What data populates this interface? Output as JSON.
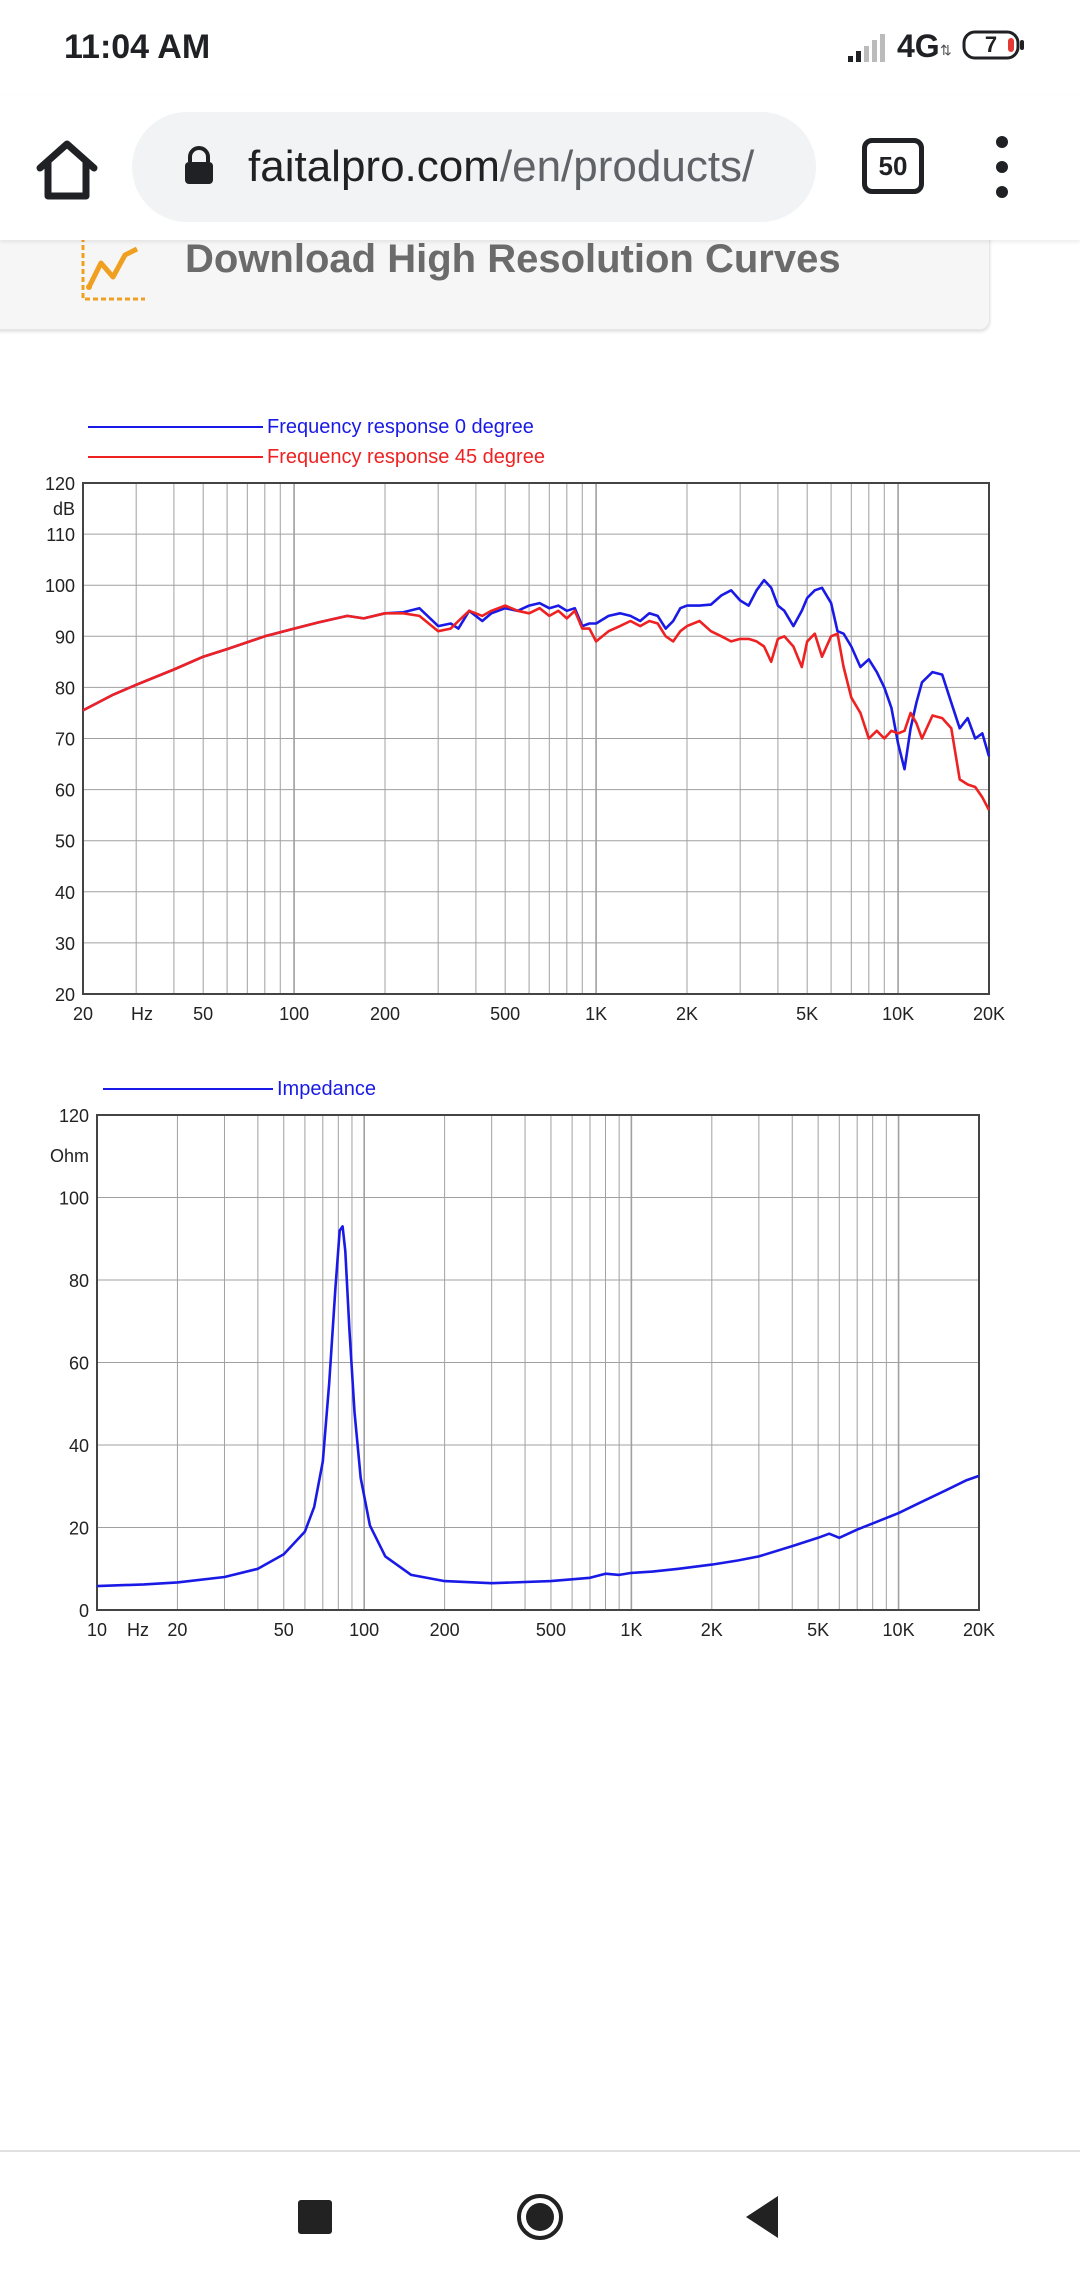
{
  "status_bar": {
    "time": "11:04 AM",
    "network": "4G",
    "battery": "7"
  },
  "browser": {
    "url_domain": "faitalpro.com",
    "url_path": "/en/products/",
    "tab_count": "50"
  },
  "download": {
    "label": "Download High Resolution Curves"
  },
  "colors": {
    "series_0deg": "#1a1ae6",
    "series_45deg": "#ee2222",
    "impedance": "#1a1ae6",
    "grid": "#a0a0a0"
  },
  "chart_data": [
    {
      "type": "line",
      "title": "",
      "x_scale": "log",
      "xlim": [
        20,
        20000
      ],
      "ylim": [
        20,
        120
      ],
      "ylabel": "dB",
      "xlabel": "Hz",
      "x_tick_labels": [
        "20",
        "Hz",
        "50",
        "100",
        "200",
        "500",
        "1K",
        "2K",
        "5K",
        "10K",
        "20K"
      ],
      "y_tick_labels": [
        "120",
        "dB",
        "110",
        "100",
        "90",
        "80",
        "70",
        "60",
        "50",
        "40",
        "30",
        "20"
      ],
      "legend": "top-left",
      "series": [
        {
          "name": "Frequency response 0 degree",
          "x": [
            20,
            25,
            30,
            40,
            50,
            60,
            80,
            100,
            120,
            150,
            170,
            200,
            230,
            260,
            300,
            330,
            350,
            380,
            420,
            450,
            500,
            550,
            600,
            650,
            700,
            750,
            800,
            850,
            900,
            950,
            1000,
            1100,
            1200,
            1300,
            1400,
            1500,
            1600,
            1700,
            1800,
            1900,
            2000,
            2200,
            2400,
            2600,
            2800,
            3000,
            3200,
            3400,
            3600,
            3800,
            4000,
            4200,
            4500,
            4800,
            5000,
            5300,
            5600,
            6000,
            6300,
            6600,
            7000,
            7500,
            8000,
            8500,
            9000,
            9500,
            10000,
            10500,
            11000,
            11500,
            12000,
            13000,
            14000,
            15000,
            16000,
            17000,
            18000,
            19000,
            20000
          ],
          "y": [
            75.5,
            78.5,
            80.5,
            83.5,
            86,
            87.5,
            90,
            91.5,
            92.7,
            94,
            93.5,
            94.5,
            94.7,
            95.5,
            92,
            92.5,
            91.5,
            95,
            93,
            94.5,
            95.5,
            95,
            96,
            96.5,
            95.5,
            96,
            95,
            95.5,
            92,
            92.5,
            92.5,
            94,
            94.5,
            94,
            93,
            94.5,
            94,
            91.5,
            93,
            95.5,
            96,
            96,
            96.2,
            98,
            99,
            97,
            96,
            99,
            101,
            99.5,
            96,
            95,
            92,
            95,
            97.5,
            99,
            99.5,
            96.5,
            91,
            90.5,
            88,
            84,
            85.5,
            83,
            80,
            76,
            69,
            64,
            72,
            77,
            81,
            83,
            82.5,
            77,
            72,
            74,
            70,
            71,
            66.5
          ]
        },
        {
          "name": "Frequency response 45 degree",
          "x": [
            20,
            25,
            30,
            40,
            50,
            60,
            80,
            100,
            120,
            150,
            170,
            200,
            230,
            260,
            300,
            330,
            350,
            380,
            420,
            450,
            500,
            550,
            600,
            650,
            700,
            750,
            800,
            850,
            900,
            950,
            1000,
            1100,
            1200,
            1300,
            1400,
            1500,
            1600,
            1700,
            1800,
            1900,
            2000,
            2200,
            2400,
            2600,
            2800,
            3000,
            3200,
            3400,
            3600,
            3800,
            4000,
            4200,
            4500,
            4800,
            5000,
            5300,
            5600,
            6000,
            6300,
            6600,
            7000,
            7500,
            8000,
            8500,
            9000,
            9500,
            10000,
            10500,
            11000,
            11500,
            12000,
            13000,
            14000,
            15000,
            16000,
            17000,
            18000,
            19000,
            20000
          ],
          "y": [
            75.5,
            78.5,
            80.5,
            83.5,
            86,
            87.5,
            90,
            91.5,
            92.7,
            94,
            93.5,
            94.5,
            94.5,
            94,
            91,
            91.5,
            93,
            95,
            94,
            95,
            96,
            95,
            94.5,
            95.5,
            94,
            95,
            93.5,
            95,
            91.5,
            91.5,
            89,
            91,
            92,
            93,
            92,
            93,
            92.5,
            90,
            89,
            91,
            92,
            93,
            91,
            90,
            89,
            89.5,
            89.5,
            89,
            88,
            85,
            89.5,
            90,
            88,
            84,
            89,
            90.5,
            86,
            90,
            90.5,
            84,
            78,
            75,
            70,
            71.5,
            70,
            71.5,
            71,
            71.5,
            75,
            73,
            70,
            74.5,
            74,
            72,
            62,
            61,
            60.5,
            58.5,
            56
          ]
        }
      ]
    },
    {
      "type": "line",
      "title": "",
      "x_scale": "log",
      "xlim": [
        10,
        20000
      ],
      "ylim": [
        0,
        120
      ],
      "ylabel": "Ohm",
      "xlabel": "Hz",
      "x_tick_labels": [
        "10",
        "Hz",
        "20",
        "50",
        "100",
        "200",
        "500",
        "1K",
        "2K",
        "5K",
        "10K",
        "20K"
      ],
      "y_tick_labels": [
        "120",
        "Ohm",
        "100",
        "80",
        "60",
        "40",
        "20",
        "0"
      ],
      "legend": "top-left",
      "series": [
        {
          "name": "Impedance",
          "x": [
            10,
            15,
            20,
            30,
            40,
            50,
            60,
            65,
            70,
            74,
            78,
            81,
            83,
            85,
            88,
            92,
            97,
            105,
            120,
            150,
            200,
            300,
            500,
            700,
            800,
            900,
            1000,
            1200,
            1500,
            2000,
            2500,
            3000,
            4000,
            5000,
            5500,
            6000,
            7000,
            8000,
            10000,
            12000,
            15000,
            18000,
            20000
          ],
          "y": [
            5.8,
            6.2,
            6.7,
            8,
            10,
            13.5,
            19,
            25,
            36,
            55,
            78,
            92,
            93,
            87,
            68,
            48,
            32,
            20.5,
            13,
            8.5,
            7,
            6.5,
            7,
            7.8,
            8.8,
            8.5,
            9,
            9.3,
            10,
            11,
            12,
            13,
            15.5,
            17.5,
            18.5,
            17.5,
            19.5,
            21,
            23.5,
            26,
            29,
            31.5,
            32.5
          ]
        }
      ]
    }
  ]
}
